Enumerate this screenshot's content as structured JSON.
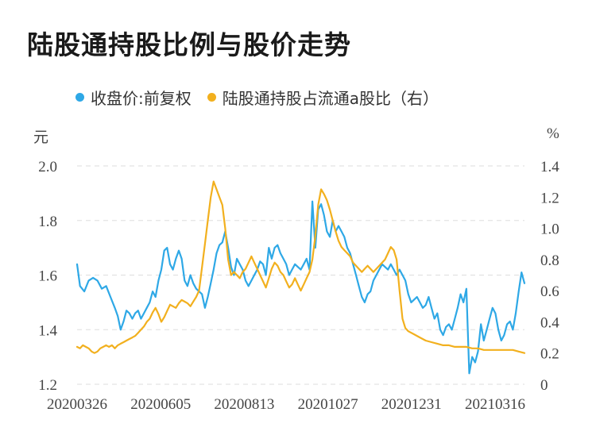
{
  "title": "陆股通持股比例与股价走势",
  "colors": {
    "price": "#2ea8e6",
    "hold": "#f2b01e",
    "grid": "#dddddd"
  },
  "legend": [
    {
      "label": "收盘价:前复权",
      "color": "#2ea8e6",
      "icon": "dot"
    },
    {
      "label": "陆股通持股占流通a股比（右）",
      "color": "#f2b01e",
      "icon": "dot"
    }
  ],
  "chart_data": {
    "type": "line",
    "left_unit": "元",
    "right_unit": "%",
    "ylim": [
      1.2,
      2.0
    ],
    "y2lim": [
      0,
      1.4
    ],
    "yticks": [
      "2.0",
      "1.8",
      "1.6",
      "1.4",
      "1.2"
    ],
    "y2ticks": [
      "1.4",
      "1.2",
      "1.0",
      "0.8",
      "0.6",
      "0.4",
      "0.2",
      "0"
    ],
    "xticks": [
      "20200326",
      "20200605",
      "20200813",
      "20201027",
      "20201231",
      "20210316"
    ],
    "grid": true,
    "series": [
      {
        "name": "收盘价:前复权",
        "axis": "left",
        "color": "#2ea8e6",
        "points": [
          [
            0,
            1.64
          ],
          [
            2,
            1.56
          ],
          [
            5,
            1.54
          ],
          [
            8,
            1.58
          ],
          [
            11,
            1.59
          ],
          [
            14,
            1.58
          ],
          [
            17,
            1.55
          ],
          [
            20,
            1.56
          ],
          [
            23,
            1.52
          ],
          [
            26,
            1.48
          ],
          [
            28,
            1.45
          ],
          [
            30,
            1.4
          ],
          [
            32,
            1.43
          ],
          [
            34,
            1.47
          ],
          [
            36,
            1.46
          ],
          [
            38,
            1.44
          ],
          [
            40,
            1.46
          ],
          [
            42,
            1.47
          ],
          [
            44,
            1.44
          ],
          [
            46,
            1.46
          ],
          [
            48,
            1.48
          ],
          [
            50,
            1.5
          ],
          [
            52,
            1.54
          ],
          [
            54,
            1.52
          ],
          [
            56,
            1.58
          ],
          [
            58,
            1.62
          ],
          [
            60,
            1.69
          ],
          [
            62,
            1.7
          ],
          [
            64,
            1.64
          ],
          [
            66,
            1.62
          ],
          [
            68,
            1.66
          ],
          [
            70,
            1.69
          ],
          [
            72,
            1.66
          ],
          [
            74,
            1.58
          ],
          [
            76,
            1.56
          ],
          [
            78,
            1.6
          ],
          [
            80,
            1.57
          ],
          [
            82,
            1.55
          ],
          [
            84,
            1.54
          ],
          [
            86,
            1.53
          ],
          [
            88,
            1.48
          ],
          [
            90,
            1.52
          ],
          [
            92,
            1.57
          ],
          [
            94,
            1.62
          ],
          [
            96,
            1.68
          ],
          [
            98,
            1.71
          ],
          [
            100,
            1.72
          ],
          [
            102,
            1.76
          ],
          [
            104,
            1.7
          ],
          [
            106,
            1.63
          ],
          [
            108,
            1.6
          ],
          [
            110,
            1.66
          ],
          [
            112,
            1.64
          ],
          [
            114,
            1.62
          ],
          [
            116,
            1.58
          ],
          [
            118,
            1.56
          ],
          [
            120,
            1.58
          ],
          [
            122,
            1.6
          ],
          [
            124,
            1.62
          ],
          [
            126,
            1.65
          ],
          [
            128,
            1.64
          ],
          [
            130,
            1.6
          ],
          [
            132,
            1.7
          ],
          [
            134,
            1.66
          ],
          [
            136,
            1.7
          ],
          [
            138,
            1.71
          ],
          [
            140,
            1.68
          ],
          [
            142,
            1.66
          ],
          [
            144,
            1.64
          ],
          [
            146,
            1.6
          ],
          [
            148,
            1.62
          ],
          [
            150,
            1.64
          ],
          [
            152,
            1.63
          ],
          [
            154,
            1.62
          ],
          [
            156,
            1.64
          ],
          [
            158,
            1.66
          ],
          [
            160,
            1.62
          ],
          [
            162,
            1.87
          ],
          [
            164,
            1.7
          ],
          [
            166,
            1.84
          ],
          [
            168,
            1.86
          ],
          [
            170,
            1.82
          ],
          [
            172,
            1.76
          ],
          [
            174,
            1.74
          ],
          [
            176,
            1.8
          ],
          [
            178,
            1.76
          ],
          [
            180,
            1.78
          ],
          [
            182,
            1.76
          ],
          [
            184,
            1.74
          ],
          [
            186,
            1.7
          ],
          [
            188,
            1.68
          ],
          [
            190,
            1.64
          ],
          [
            192,
            1.6
          ],
          [
            194,
            1.56
          ],
          [
            196,
            1.52
          ],
          [
            198,
            1.5
          ],
          [
            200,
            1.53
          ],
          [
            202,
            1.54
          ],
          [
            204,
            1.58
          ],
          [
            206,
            1.6
          ],
          [
            208,
            1.62
          ],
          [
            210,
            1.64
          ],
          [
            212,
            1.63
          ],
          [
            214,
            1.62
          ],
          [
            216,
            1.64
          ],
          [
            218,
            1.62
          ],
          [
            220,
            1.6
          ],
          [
            222,
            1.62
          ],
          [
            224,
            1.6
          ],
          [
            226,
            1.58
          ],
          [
            228,
            1.53
          ],
          [
            230,
            1.5
          ],
          [
            232,
            1.51
          ],
          [
            234,
            1.52
          ],
          [
            236,
            1.5
          ],
          [
            238,
            1.48
          ],
          [
            240,
            1.49
          ],
          [
            242,
            1.52
          ],
          [
            244,
            1.48
          ],
          [
            246,
            1.44
          ],
          [
            248,
            1.46
          ],
          [
            250,
            1.4
          ],
          [
            252,
            1.38
          ],
          [
            254,
            1.41
          ],
          [
            256,
            1.42
          ],
          [
            258,
            1.4
          ],
          [
            260,
            1.44
          ],
          [
            262,
            1.48
          ],
          [
            264,
            1.53
          ],
          [
            266,
            1.5
          ],
          [
            268,
            1.55
          ],
          [
            270,
            1.24
          ],
          [
            272,
            1.3
          ],
          [
            274,
            1.28
          ],
          [
            276,
            1.32
          ],
          [
            278,
            1.42
          ],
          [
            280,
            1.36
          ],
          [
            282,
            1.4
          ],
          [
            284,
            1.44
          ],
          [
            286,
            1.48
          ],
          [
            288,
            1.46
          ],
          [
            290,
            1.4
          ],
          [
            292,
            1.36
          ],
          [
            294,
            1.38
          ],
          [
            296,
            1.42
          ],
          [
            298,
            1.43
          ],
          [
            300,
            1.4
          ],
          [
            302,
            1.46
          ],
          [
            304,
            1.54
          ],
          [
            306,
            1.61
          ],
          [
            308,
            1.57
          ]
        ]
      },
      {
        "name": "陆股通持股占流通a股比（右）",
        "axis": "right",
        "color": "#f2b01e",
        "points": [
          [
            0,
            0.24
          ],
          [
            2,
            0.23
          ],
          [
            4,
            0.25
          ],
          [
            6,
            0.24
          ],
          [
            8,
            0.23
          ],
          [
            10,
            0.21
          ],
          [
            12,
            0.2
          ],
          [
            14,
            0.21
          ],
          [
            16,
            0.23
          ],
          [
            18,
            0.24
          ],
          [
            20,
            0.25
          ],
          [
            22,
            0.24
          ],
          [
            24,
            0.25
          ],
          [
            26,
            0.23
          ],
          [
            28,
            0.25
          ],
          [
            30,
            0.26
          ],
          [
            32,
            0.27
          ],
          [
            34,
            0.28
          ],
          [
            36,
            0.29
          ],
          [
            38,
            0.3
          ],
          [
            40,
            0.31
          ],
          [
            42,
            0.33
          ],
          [
            44,
            0.35
          ],
          [
            46,
            0.37
          ],
          [
            48,
            0.4
          ],
          [
            50,
            0.42
          ],
          [
            52,
            0.46
          ],
          [
            54,
            0.49
          ],
          [
            56,
            0.45
          ],
          [
            58,
            0.4
          ],
          [
            60,
            0.43
          ],
          [
            62,
            0.47
          ],
          [
            64,
            0.51
          ],
          [
            66,
            0.5
          ],
          [
            68,
            0.49
          ],
          [
            70,
            0.52
          ],
          [
            72,
            0.54
          ],
          [
            74,
            0.53
          ],
          [
            76,
            0.52
          ],
          [
            78,
            0.5
          ],
          [
            80,
            0.53
          ],
          [
            82,
            0.56
          ],
          [
            84,
            0.6
          ],
          [
            86,
            0.75
          ],
          [
            88,
            0.9
          ],
          [
            90,
            1.05
          ],
          [
            92,
            1.2
          ],
          [
            94,
            1.3
          ],
          [
            96,
            1.25
          ],
          [
            98,
            1.2
          ],
          [
            100,
            1.15
          ],
          [
            102,
            1.0
          ],
          [
            104,
            0.8
          ],
          [
            106,
            0.7
          ],
          [
            108,
            0.72
          ],
          [
            110,
            0.7
          ],
          [
            112,
            0.68
          ],
          [
            114,
            0.72
          ],
          [
            116,
            0.74
          ],
          [
            118,
            0.78
          ],
          [
            120,
            0.82
          ],
          [
            122,
            0.78
          ],
          [
            124,
            0.74
          ],
          [
            126,
            0.7
          ],
          [
            128,
            0.66
          ],
          [
            130,
            0.62
          ],
          [
            132,
            0.68
          ],
          [
            134,
            0.74
          ],
          [
            136,
            0.78
          ],
          [
            138,
            0.76
          ],
          [
            140,
            0.72
          ],
          [
            142,
            0.7
          ],
          [
            144,
            0.66
          ],
          [
            146,
            0.62
          ],
          [
            148,
            0.64
          ],
          [
            150,
            0.68
          ],
          [
            152,
            0.64
          ],
          [
            154,
            0.6
          ],
          [
            156,
            0.64
          ],
          [
            158,
            0.68
          ],
          [
            160,
            0.72
          ],
          [
            162,
            0.8
          ],
          [
            164,
            0.95
          ],
          [
            166,
            1.15
          ],
          [
            168,
            1.25
          ],
          [
            170,
            1.22
          ],
          [
            172,
            1.18
          ],
          [
            174,
            1.12
          ],
          [
            176,
            1.05
          ],
          [
            178,
            0.98
          ],
          [
            180,
            0.92
          ],
          [
            182,
            0.88
          ],
          [
            184,
            0.86
          ],
          [
            186,
            0.84
          ],
          [
            188,
            0.82
          ],
          [
            190,
            0.78
          ],
          [
            192,
            0.76
          ],
          [
            194,
            0.74
          ],
          [
            196,
            0.72
          ],
          [
            198,
            0.74
          ],
          [
            200,
            0.76
          ],
          [
            202,
            0.74
          ],
          [
            204,
            0.72
          ],
          [
            206,
            0.74
          ],
          [
            208,
            0.76
          ],
          [
            210,
            0.78
          ],
          [
            212,
            0.8
          ],
          [
            214,
            0.84
          ],
          [
            216,
            0.88
          ],
          [
            218,
            0.86
          ],
          [
            220,
            0.8
          ],
          [
            222,
            0.6
          ],
          [
            224,
            0.42
          ],
          [
            226,
            0.36
          ],
          [
            228,
            0.34
          ],
          [
            232,
            0.32
          ],
          [
            236,
            0.3
          ],
          [
            240,
            0.28
          ],
          [
            244,
            0.27
          ],
          [
            248,
            0.26
          ],
          [
            252,
            0.25
          ],
          [
            256,
            0.25
          ],
          [
            260,
            0.24
          ],
          [
            264,
            0.24
          ],
          [
            268,
            0.24
          ],
          [
            272,
            0.23
          ],
          [
            276,
            0.23
          ],
          [
            280,
            0.22
          ],
          [
            284,
            0.22
          ],
          [
            288,
            0.22
          ],
          [
            292,
            0.22
          ],
          [
            296,
            0.22
          ],
          [
            300,
            0.22
          ],
          [
            304,
            0.21
          ],
          [
            308,
            0.2
          ]
        ]
      }
    ]
  }
}
